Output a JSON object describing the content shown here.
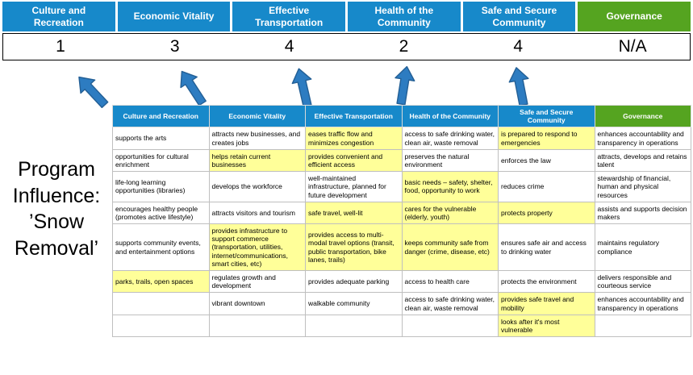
{
  "title": "Program Influence: ’Snow Removal’",
  "colors": {
    "blue": "#1789ca",
    "green": "#55a420",
    "highlight": "#ffff99",
    "arrow": "#2d7cc1"
  },
  "columns": [
    {
      "label": "Culture and Recreation",
      "score": "1",
      "theme": "blue"
    },
    {
      "label": "Economic Vitality",
      "score": "3",
      "theme": "blue"
    },
    {
      "label": "Effective Transportation",
      "score": "4",
      "theme": "blue"
    },
    {
      "label": "Health of the Community",
      "score": "2",
      "theme": "blue"
    },
    {
      "label": "Safe and Secure Community",
      "score": "4",
      "theme": "blue"
    },
    {
      "label": "Governance",
      "score": "N/A",
      "theme": "green"
    }
  ],
  "matrix": {
    "headers": [
      "Culture and Recreation",
      "Economic Vitality",
      "Effective Transportation",
      "Health of the Community",
      "Safe and Secure Community",
      "Governance"
    ],
    "rows": [
      [
        {
          "text": "supports the arts",
          "highlight": false
        },
        {
          "text": "attracts new businesses, and creates jobs",
          "highlight": false
        },
        {
          "text": "eases traffic flow and minimizes congestion",
          "highlight": true
        },
        {
          "text": "access to safe drinking water, clean air, waste removal",
          "highlight": false
        },
        {
          "text": "is prepared to respond to emergencies",
          "highlight": true
        },
        {
          "text": "enhances accountability and transparency in operations",
          "highlight": false
        }
      ],
      [
        {
          "text": "opportunities for cultural enrichment",
          "highlight": false
        },
        {
          "text": "helps retain current businesses",
          "highlight": true
        },
        {
          "text": "provides convenient and efficient access",
          "highlight": true
        },
        {
          "text": "preserves the natural environment",
          "highlight": false
        },
        {
          "text": "enforces the law",
          "highlight": false
        },
        {
          "text": "attracts, develops and retains talent",
          "highlight": false
        }
      ],
      [
        {
          "text": "life-long learning opportunities (libraries)",
          "highlight": false
        },
        {
          "text": "develops the workforce",
          "highlight": false
        },
        {
          "text": "well-maintained infrastructure, planned for future development",
          "highlight": false
        },
        {
          "text": "basic needs – safety, shelter, food, opportunity to work",
          "highlight": true
        },
        {
          "text": "reduces crime",
          "highlight": false
        },
        {
          "text": "stewardship of financial, human and physical resources",
          "highlight": false
        }
      ],
      [
        {
          "text": "encourages healthy people (promotes active lifestyle)",
          "highlight": false
        },
        {
          "text": "attracts visitors and tourism",
          "highlight": false
        },
        {
          "text": "safe travel, well-lit",
          "highlight": true
        },
        {
          "text": "cares for the vulnerable (elderly, youth)",
          "highlight": true
        },
        {
          "text": "protects property",
          "highlight": true
        },
        {
          "text": "assists and supports decision makers",
          "highlight": false
        }
      ],
      [
        {
          "text": "supports community events, and entertainment options",
          "highlight": false
        },
        {
          "text": "provides infrastructure to support commerce (transportation, utilities, internet/communications, smart cities, etc)",
          "highlight": true
        },
        {
          "text": "provides access to multi-modal travel options (transit, public transportation, bike lanes, trails)",
          "highlight": true
        },
        {
          "text": "keeps community safe from danger (crime, disease, etc)",
          "highlight": true
        },
        {
          "text": "ensures safe air and access to drinking water",
          "highlight": false
        },
        {
          "text": "maintains regulatory compliance",
          "highlight": false
        }
      ],
      [
        {
          "text": "parks, trails, open spaces",
          "highlight": true
        },
        {
          "text": "regulates growth and development",
          "highlight": false
        },
        {
          "text": "provides adequate parking",
          "highlight": false
        },
        {
          "text": "access to health care",
          "highlight": false
        },
        {
          "text": "protects the environment",
          "highlight": false
        },
        {
          "text": "delivers responsible and courteous service",
          "highlight": false
        }
      ],
      [
        {
          "text": "",
          "highlight": false
        },
        {
          "text": "vibrant downtown",
          "highlight": false
        },
        {
          "text": "walkable community",
          "highlight": false
        },
        {
          "text": "access to safe drinking water, clean air, waste removal",
          "highlight": false
        },
        {
          "text": "provides safe travel and mobility",
          "highlight": true
        },
        {
          "text": "enhances accountability and transparency in operations",
          "highlight": false
        }
      ],
      [
        {
          "text": "",
          "highlight": false
        },
        {
          "text": "",
          "highlight": false
        },
        {
          "text": "",
          "highlight": false
        },
        {
          "text": "",
          "highlight": false
        },
        {
          "text": "looks after it's most vulnerable",
          "highlight": true
        },
        {
          "text": "",
          "highlight": false
        }
      ]
    ]
  }
}
